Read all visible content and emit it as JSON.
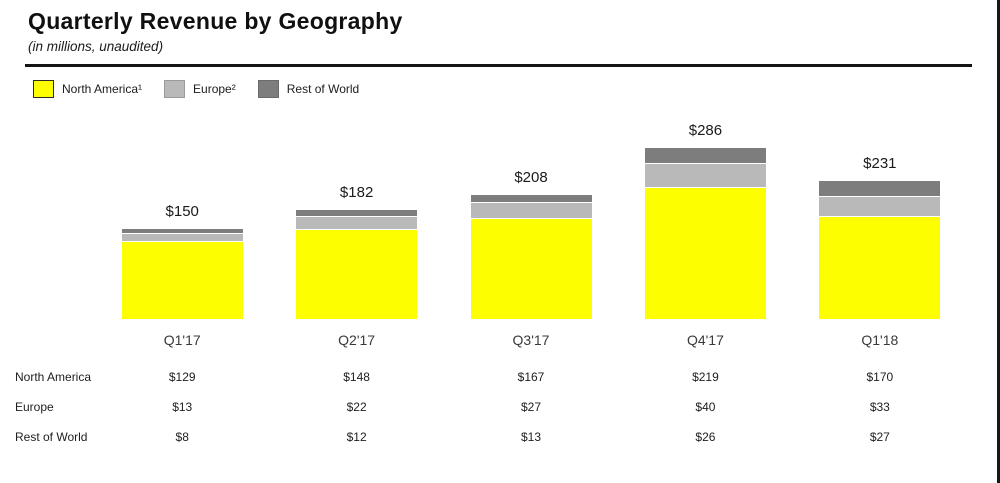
{
  "header": {
    "title": "Quarterly Revenue by Geography",
    "subtitle": "(in millions, unaudited)"
  },
  "legend": [
    {
      "label": "North America¹",
      "color": "#fdff00",
      "border": "#2b2b2b"
    },
    {
      "label": "Europe²",
      "color": "#b9b9b9",
      "border": "#9a9a9a"
    },
    {
      "label": "Rest of World",
      "color": "#7d7d7d",
      "border": "#6a6a6a"
    }
  ],
  "chart_data": {
    "type": "bar",
    "stacked": true,
    "title": "Quarterly Revenue by Geography",
    "subtitle": "(in millions, unaudited)",
    "categories": [
      "Q1'17",
      "Q2'17",
      "Q3'17",
      "Q4'17",
      "Q1'18"
    ],
    "series": [
      {
        "name": "North America",
        "color": "#fdff00",
        "values": [
          129,
          148,
          167,
          219,
          170
        ]
      },
      {
        "name": "Europe",
        "color": "#b9b9b9",
        "values": [
          13,
          22,
          27,
          40,
          33
        ]
      },
      {
        "name": "Rest of World",
        "color": "#7d7d7d",
        "values": [
          8,
          12,
          13,
          26,
          27
        ]
      }
    ],
    "totals": [
      150,
      182,
      208,
      286,
      231
    ],
    "total_labels": [
      "$150",
      "$182",
      "$208",
      "$286",
      "$231"
    ],
    "value_prefix": "$",
    "ylabel": "",
    "xlabel": "",
    "ylim": [
      0,
      300
    ],
    "grid": false,
    "legend_position": "top-left"
  },
  "table": {
    "rows": [
      {
        "label": "North America",
        "values": [
          "$129",
          "$148",
          "$167",
          "$219",
          "$170"
        ]
      },
      {
        "label": "Europe",
        "values": [
          "$13",
          "$22",
          "$27",
          "$40",
          "$33"
        ]
      },
      {
        "label": "Rest of World",
        "values": [
          "$8",
          "$12",
          "$13",
          "$26",
          "$27"
        ]
      }
    ]
  }
}
